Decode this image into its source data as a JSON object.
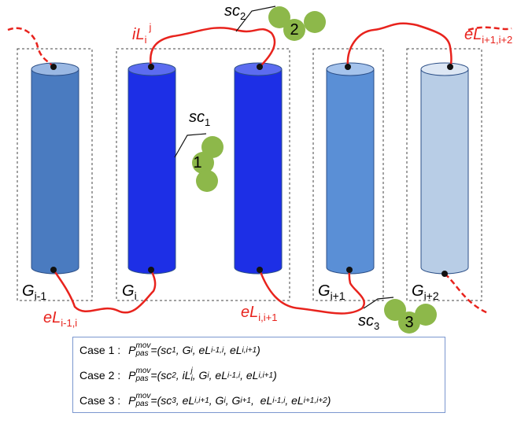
{
  "groups": [
    {
      "base": "G",
      "sub": "i-1"
    },
    {
      "base": "G",
      "sub": "i"
    },
    {
      "base": "G",
      "sub": "i+1"
    },
    {
      "base": "G",
      "sub": "i+2"
    }
  ],
  "links": [
    {
      "base": "eL",
      "sub": "i-1,i"
    },
    {
      "base": "iL",
      "sub": "i",
      "sup": "j"
    },
    {
      "base": "eL",
      "sub": "i,i+1"
    },
    {
      "base": "eL",
      "sub": "i+1,i+2"
    }
  ],
  "side_chains": [
    {
      "base": "sc",
      "sub": "1"
    },
    {
      "base": "sc",
      "sub": "2"
    },
    {
      "base": "sc",
      "sub": "3"
    }
  ],
  "clusters": [
    "1",
    "2",
    "3"
  ],
  "cases": [
    {
      "label": "Case 1 :",
      "formula": [
        {
          "text": "P",
          "sub": "pas",
          "sup": "mov"
        },
        {
          "text": "=(sc",
          "sub": "1"
        },
        {
          "text": ", G",
          "sub": "i"
        },
        {
          "text": ", eL",
          "sub": "i-1,i"
        },
        {
          "text": ", eL",
          "sub": "i,i+1"
        },
        {
          "text": ")"
        }
      ]
    },
    {
      "label": "Case 2 :",
      "formula": [
        {
          "text": "P",
          "sub": "pas",
          "sup": "mov"
        },
        {
          "text": "=(sc",
          "sub": "2"
        },
        {
          "text": ", iL",
          "sub": "i",
          "sup": "j"
        },
        {
          "text": ", G",
          "sub": "i"
        },
        {
          "text": ", eL",
          "sub": "i-1,i"
        },
        {
          "text": ", eL",
          "sub": "i,i+1"
        },
        {
          "text": ")"
        }
      ]
    },
    {
      "label": "Case 3 :",
      "formula": [
        {
          "text": "P",
          "sub": "pas",
          "sup": "mov"
        },
        {
          "text": "=(sc",
          "sub": "3"
        },
        {
          "text": ", eL",
          "sub": "i,i+1"
        },
        {
          "text": ", G",
          "sub": "i"
        },
        {
          "text": ", G",
          "sub": "i+1"
        },
        {
          "text": ",  eL",
          "sub": "i-1,i"
        },
        {
          "text": ", eL",
          "sub": "i+1,i+2"
        },
        {
          "text": ")"
        }
      ]
    }
  ]
}
